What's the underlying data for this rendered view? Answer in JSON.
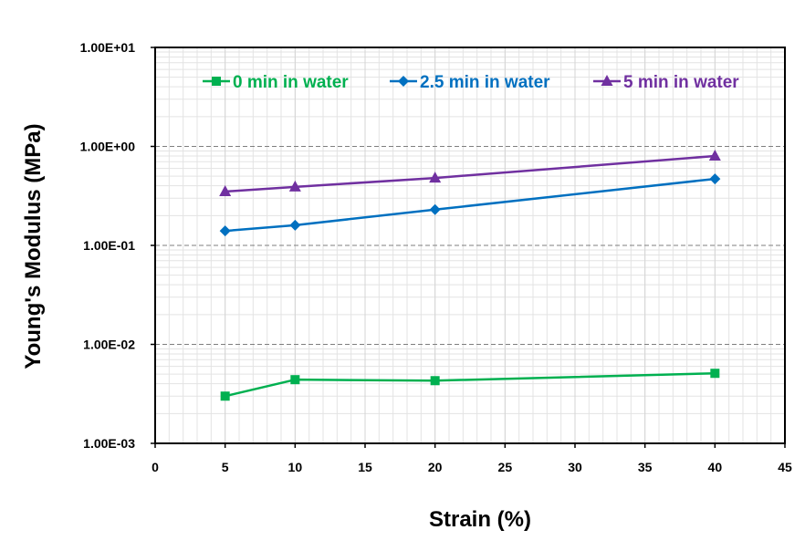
{
  "chart_data": {
    "type": "line",
    "title": "",
    "xlabel": "Strain (%)",
    "ylabel": "Young's Modulus (MPa)",
    "x_scale": "linear",
    "y_scale": "log",
    "xlim": [
      0,
      45
    ],
    "ylim": [
      0.001,
      10
    ],
    "x_ticks": [
      0,
      5,
      10,
      15,
      20,
      25,
      30,
      35,
      40,
      45
    ],
    "y_ticks": [
      0.001,
      0.01,
      0.1,
      1,
      10
    ],
    "y_tick_labels": [
      "1.00E-03",
      "1.00E-02",
      "1.00E-01",
      "1.00E+00",
      "1.00E+01"
    ],
    "grid": true,
    "legend_position": "top",
    "series": [
      {
        "name": "0 min in water",
        "color": "#00B050",
        "marker": "square",
        "x": [
          5,
          10,
          20,
          40
        ],
        "y": [
          0.003,
          0.0044,
          0.0043,
          0.0051
        ]
      },
      {
        "name": "2.5 min in water",
        "color": "#0070C0",
        "marker": "diamond",
        "x": [
          5,
          10,
          20,
          40
        ],
        "y": [
          0.14,
          0.16,
          0.23,
          0.47
        ]
      },
      {
        "name": "5 min in water",
        "color": "#7030A0",
        "marker": "triangle",
        "x": [
          5,
          10,
          20,
          40
        ],
        "y": [
          0.35,
          0.39,
          0.48,
          0.8
        ]
      }
    ]
  }
}
